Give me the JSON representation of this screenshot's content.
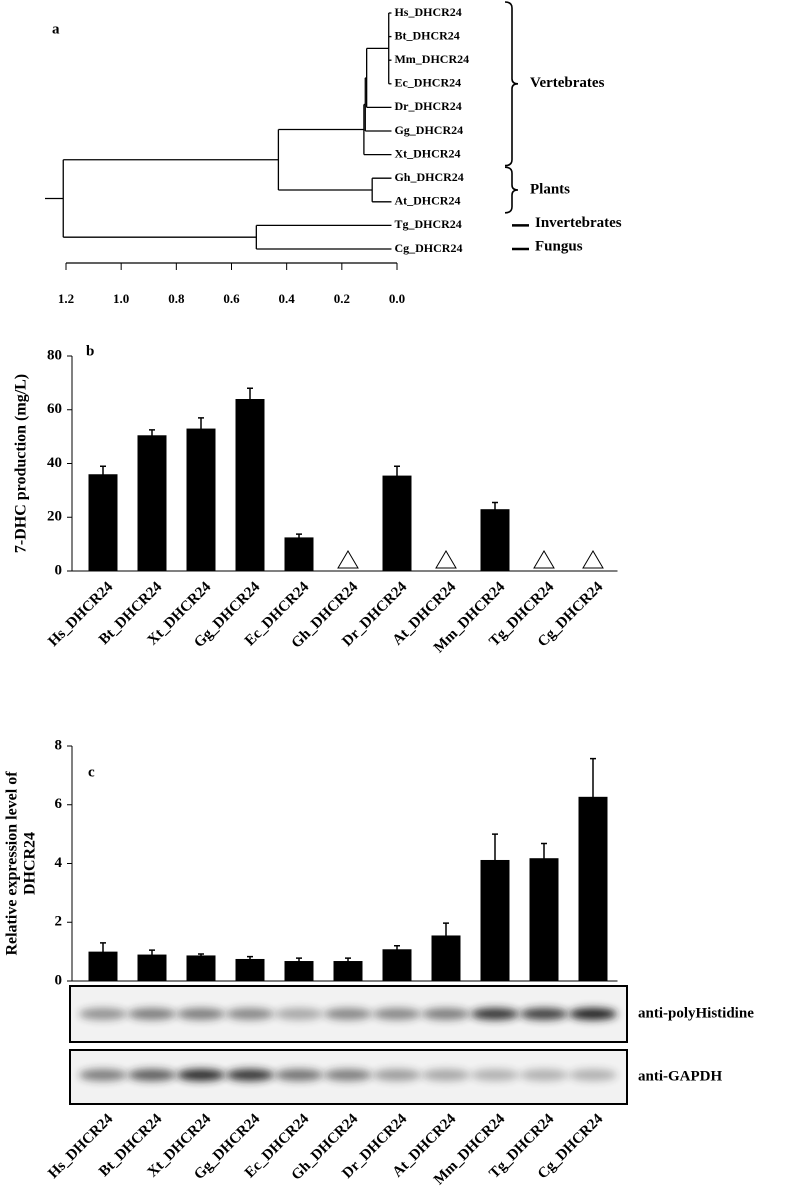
{
  "chart_data": [
    {
      "type": "tree",
      "label": "a",
      "nodes": [
        {
          "label": "Hs_DHCR24",
          "height": 0.02
        },
        {
          "label": "Bt_DHCR24",
          "height": 0.02
        },
        {
          "label": "Mm_DHCR24",
          "height": 0.02
        },
        {
          "label": "Ec_DHCR24",
          "height": 0.02
        },
        {
          "label": "Dr_DHCR24",
          "height": 0.02
        },
        {
          "label": "Gg_DHCR24",
          "height": 0.02
        },
        {
          "label": "Xt_DHCR24",
          "height": 0.02
        },
        {
          "label": "Gh_DHCR24",
          "height": 0.02
        },
        {
          "label": "At_DHCR24",
          "height": 0.02
        },
        {
          "label": "Tg_DHCR24",
          "height": 0.02
        },
        {
          "label": "Cg_DHCR24",
          "height": 0.02
        },
        {
          "children": [
            0,
            1,
            2,
            3
          ],
          "height": 0.03
        },
        {
          "children": [
            11,
            4
          ],
          "height": 0.11
        },
        {
          "children": [
            12,
            5
          ],
          "height": 0.115
        },
        {
          "children": [
            13,
            6
          ],
          "height": 0.12
        },
        {
          "children": [
            7,
            8
          ],
          "height": 0.09
        },
        {
          "children": [
            14,
            15
          ],
          "height": 0.43
        },
        {
          "children": [
            9,
            10
          ],
          "height": 0.51
        },
        {
          "children": [
            16,
            17
          ],
          "height": 1.21
        }
      ],
      "groups": [
        "Vertebrates",
        "Plants",
        "Invertebrates",
        "Fungus"
      ],
      "xlim": [
        1.2,
        0
      ],
      "xticks": [
        1.2,
        {
          "value": 1,
          "label": "1.0"
        },
        0.8,
        0.6,
        0.4,
        0.2,
        {
          "value": 0,
          "label": "0.0"
        }
      ]
    },
    {
      "type": "bar",
      "label": "b",
      "ylabel": [
        "7-DHC production (mg/L)"
      ],
      "categories": [
        "Hs_DHCR24",
        "Bt_DHCR24",
        "Xt_DHCR24",
        "Gg_DHCR24",
        "Ec_DHCR24",
        "Gh_DHCR24",
        "Dr_DHCR24",
        "At_DHCR24",
        "Mm_DHCR24",
        "Tg_DHCR24",
        "Cg_DHCR24"
      ],
      "values": [
        36,
        50.5,
        53,
        64,
        12.5,
        null,
        35.5,
        null,
        23,
        null,
        null
      ],
      "errors": [
        3,
        2,
        4,
        4,
        1.2,
        null,
        3.5,
        null,
        2.5,
        null,
        null
      ],
      "color": "#000000",
      "missing_color": "#c0504d",
      "ylim": [
        0,
        80
      ],
      "yticks": [
        0,
        20,
        40,
        60,
        80
      ]
    },
    {
      "type": "bar",
      "label": "c",
      "ylabel": [
        "Relative expression level of",
        "DHCR24"
      ],
      "categories": [
        "Hs_DHCR24",
        "Bt_DHCR24",
        "Xt_DHCR24",
        "Gg_DHCR24",
        "Ec_DHCR24",
        "Gh_DHCR24",
        "Dr_DHCR24",
        "At_DHCR24",
        "Mm_DHCR24",
        "Tg_DHCR24",
        "Cg_DHCR24"
      ],
      "values": [
        1.0,
        0.9,
        0.87,
        0.75,
        0.68,
        0.68,
        1.08,
        1.55,
        4.12,
        4.18,
        6.27
      ],
      "errors": [
        0.3,
        0.15,
        0.05,
        0.08,
        0.1,
        0.1,
        0.12,
        0.42,
        0.88,
        0.5,
        1.3
      ],
      "color": "#000000",
      "ylim": [
        0,
        8
      ],
      "yticks": [
        0,
        2,
        4,
        6,
        8
      ],
      "blots": [
        "anti-polyHistidine",
        "anti-GAPDH"
      ]
    }
  ]
}
